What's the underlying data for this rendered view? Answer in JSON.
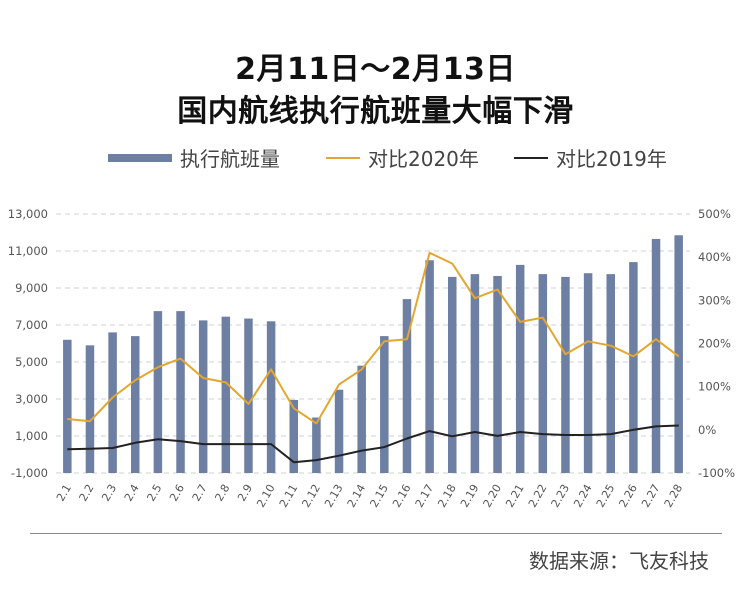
{
  "title_line1": "2月11日～2月13日",
  "title_line2": "国内航线执行航班量大幅下滑",
  "legend": {
    "bar_label": "执行航班量",
    "line2020_label": "对比2020年",
    "line2019_label": "对比2019年"
  },
  "source": "数据来源：飞友科技",
  "colors": {
    "bar": "#6d7fa3",
    "line2020": "#e3a72f",
    "line2019": "#222222",
    "grid": "#d0d0d0"
  },
  "chart_data": {
    "type": "bar",
    "categories": [
      "2.1",
      "2.2",
      "2.3",
      "2.4",
      "2.5",
      "2.6",
      "2.7",
      "2.8",
      "2.9",
      "2.10",
      "2.11",
      "2.12",
      "2.13",
      "2.14",
      "2.15",
      "2.16",
      "2.17",
      "2.18",
      "2.19",
      "2.20",
      "2.21",
      "2.22",
      "2.23",
      "2.24",
      "2.25",
      "2.26",
      "2.27",
      "2.28"
    ],
    "ylim": [
      -1000,
      13000
    ],
    "yticks": [
      -1000,
      1000,
      3000,
      5000,
      7000,
      9000,
      11000,
      13000
    ],
    "ytick_labels": [
      "-1,000",
      "1,000",
      "3,000",
      "5,000",
      "7,000",
      "9,000",
      "11,000",
      "13,000"
    ],
    "y2lim": [
      -100,
      500
    ],
    "y2ticks": [
      -100,
      0,
      100,
      200,
      300,
      400,
      500
    ],
    "y2tick_labels": [
      "-100%",
      "0%",
      "100%",
      "200%",
      "300%",
      "400%",
      "500%"
    ],
    "grid": true,
    "series": [
      {
        "name": "执行航班量",
        "type": "bar",
        "axis": "left",
        "values": [
          6200,
          5900,
          6600,
          6400,
          7750,
          7750,
          7250,
          7450,
          7350,
          7200,
          2950,
          2000,
          3500,
          4800,
          6400,
          8400,
          10500,
          9600,
          9750,
          9650,
          10250,
          9750,
          9600,
          9800,
          9750,
          10400,
          11650,
          11850
        ]
      },
      {
        "name": "对比2020年",
        "type": "line",
        "axis": "right",
        "values": [
          25,
          20,
          75,
          115,
          145,
          165,
          120,
          110,
          60,
          140,
          50,
          15,
          105,
          140,
          205,
          210,
          410,
          385,
          305,
          325,
          250,
          260,
          175,
          205,
          195,
          170,
          210,
          170
        ]
      },
      {
        "name": "对比2019年",
        "type": "line",
        "axis": "right",
        "values": [
          -45,
          -44,
          -42,
          -30,
          -22,
          -26,
          -33,
          -33,
          -33,
          -33,
          -75,
          -70,
          -60,
          -48,
          -40,
          -20,
          -3,
          -15,
          -5,
          -14,
          -5,
          -10,
          -12,
          -12,
          -10,
          0,
          8,
          10
        ]
      }
    ]
  }
}
